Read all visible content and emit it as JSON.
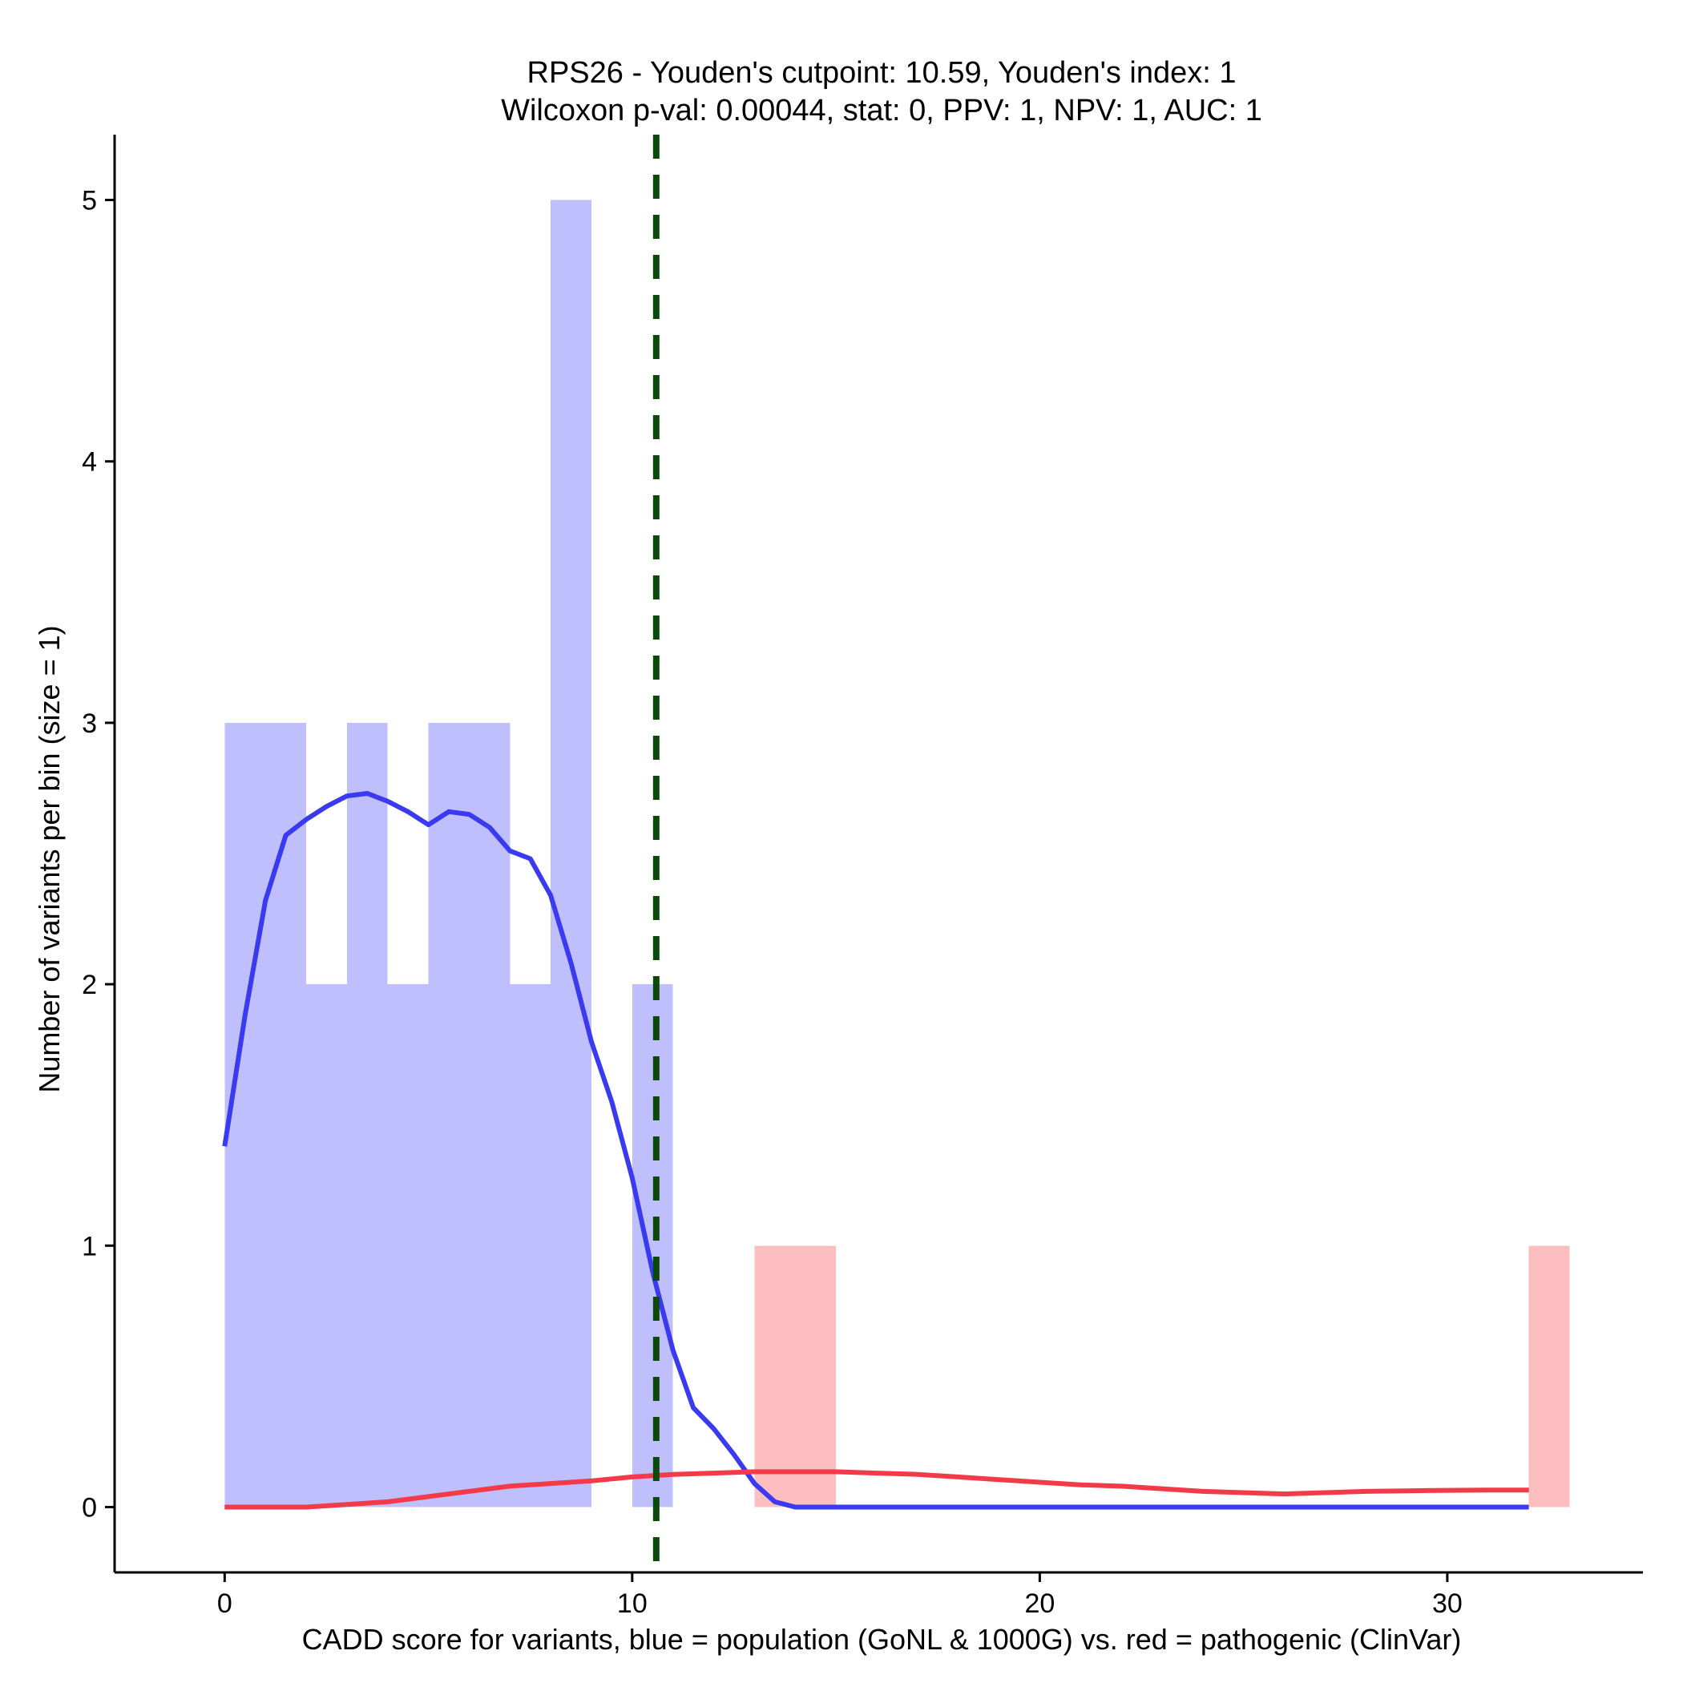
{
  "chart_data": {
    "type": "bar",
    "title_line1": "RPS26 - Youden's cutpoint: 10.59, Youden's index: 1",
    "title_line2": "Wilcoxon p-val: 0.00044, stat: 0, PPV: 1, NPV: 1, AUC: 1",
    "xlabel": "CADD score for variants, blue = population (GoNL & 1000G) vs. red = pathogenic (ClinVar)",
    "ylabel": "Number of variants per bin (size = 1)",
    "xlim": [
      -2.7,
      34.8
    ],
    "ylim": [
      -0.25,
      5.25
    ],
    "x_ticks": [
      0,
      10,
      20,
      30
    ],
    "y_ticks": [
      0,
      1,
      2,
      3,
      4,
      5
    ],
    "grid": false,
    "cutpoint": 10.59,
    "colors": {
      "population_bar": "#bfbffd",
      "pathogenic_bar": "#fdbec0",
      "population_line": "#3a3af0",
      "pathogenic_line": "#f23a48",
      "cutpoint_line": "#0b4a0b"
    },
    "histograms": [
      {
        "name": "population",
        "bins": [
          {
            "x0": 0,
            "x1": 1,
            "count": 3
          },
          {
            "x0": 1,
            "x1": 2,
            "count": 3
          },
          {
            "x0": 2,
            "x1": 3,
            "count": 2
          },
          {
            "x0": 3,
            "x1": 4,
            "count": 3
          },
          {
            "x0": 4,
            "x1": 5,
            "count": 2
          },
          {
            "x0": 5,
            "x1": 6,
            "count": 3
          },
          {
            "x0": 6,
            "x1": 7,
            "count": 3
          },
          {
            "x0": 7,
            "x1": 8,
            "count": 2
          },
          {
            "x0": 8,
            "x1": 9,
            "count": 5
          },
          {
            "x0": 10,
            "x1": 11,
            "count": 2
          }
        ]
      },
      {
        "name": "pathogenic",
        "bins": [
          {
            "x0": 13,
            "x1": 14,
            "count": 1
          },
          {
            "x0": 14,
            "x1": 15,
            "count": 1
          },
          {
            "x0": 32,
            "x1": 33,
            "count": 1
          }
        ]
      }
    ],
    "density_lines": [
      {
        "name": "population",
        "x": [
          0,
          0.5,
          1,
          1.5,
          2,
          2.5,
          3,
          3.5,
          4,
          4.5,
          5,
          5.5,
          6,
          6.5,
          7,
          7.5,
          8,
          8.5,
          9,
          9.5,
          10,
          10.5,
          11,
          11.5,
          12,
          12.5,
          13,
          13.5,
          14,
          15,
          20,
          25,
          32
        ],
        "y": [
          1.38,
          1.88,
          2.32,
          2.57,
          2.63,
          2.68,
          2.72,
          2.73,
          2.7,
          2.66,
          2.61,
          2.66,
          2.65,
          2.6,
          2.51,
          2.48,
          2.34,
          2.08,
          1.78,
          1.55,
          1.26,
          0.9,
          0.6,
          0.38,
          0.3,
          0.2,
          0.09,
          0.02,
          0.0,
          0.0,
          0.0,
          0.0,
          0.0
        ]
      },
      {
        "name": "pathogenic",
        "x": [
          0,
          1,
          2,
          3,
          4,
          5,
          6,
          7,
          8,
          9,
          10,
          11,
          12,
          13,
          14,
          15,
          16,
          17,
          18,
          19,
          20,
          21,
          22,
          23,
          24,
          25,
          26,
          27,
          28,
          29,
          30,
          31,
          32
        ],
        "y": [
          0.0,
          0.0,
          0.0,
          0.01,
          0.02,
          0.04,
          0.06,
          0.08,
          0.09,
          0.1,
          0.115,
          0.125,
          0.13,
          0.135,
          0.135,
          0.135,
          0.13,
          0.125,
          0.115,
          0.105,
          0.095,
          0.085,
          0.08,
          0.07,
          0.06,
          0.055,
          0.05,
          0.055,
          0.06,
          0.062,
          0.064,
          0.065,
          0.065
        ]
      }
    ]
  }
}
